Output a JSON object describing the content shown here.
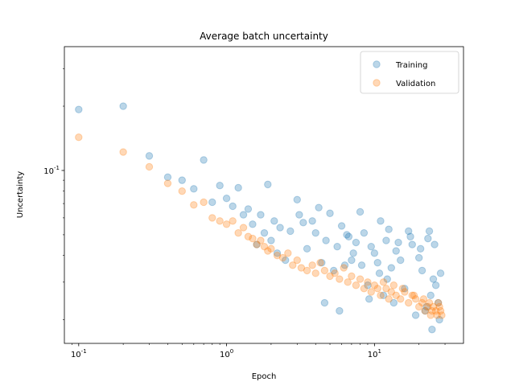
{
  "chart_data": {
    "type": "scatter",
    "title": "Average batch uncertainty",
    "xlabel": "Epoch",
    "ylabel": "Uncertainty",
    "xscale": "log",
    "yscale": "log",
    "xlim": [
      0.08,
      40
    ],
    "ylim": [
      0.0155,
      0.38
    ],
    "x_ticks": [
      {
        "value": 0.1,
        "label": "10^{-1}"
      },
      {
        "value": 1,
        "label": "10^{0}"
      },
      {
        "value": 10,
        "label": "10^{1}"
      }
    ],
    "y_ticks": [
      {
        "value": 0.1,
        "label": "10^{-1}"
      }
    ],
    "legend_position": "top-right",
    "grid": false,
    "series": [
      {
        "name": "Training",
        "color": "#1f77b4",
        "x": [
          0.1,
          0.2,
          0.3,
          0.4,
          0.5,
          0.6,
          0.7,
          0.8,
          0.9,
          1.0,
          1.1,
          1.2,
          1.3,
          1.4,
          1.5,
          1.6,
          1.7,
          1.8,
          1.9,
          2.0,
          2.1,
          2.2,
          2.3,
          2.5,
          2.7,
          3.0,
          3.1,
          3.3,
          3.5,
          3.8,
          4.0,
          4.2,
          4.4,
          4.7,
          5.0,
          5.3,
          5.6,
          6.0,
          6.3,
          6.7,
          7.0,
          7.5,
          8.0,
          8.5,
          9.0,
          9.5,
          10,
          10.5,
          11,
          11.5,
          12,
          12.5,
          13,
          13.5,
          14,
          15,
          16,
          17,
          18,
          19,
          20,
          21,
          22,
          23,
          24,
          25,
          26,
          27,
          28,
          4.6,
          5.8,
          6.5,
          7.2,
          8.2,
          9.2,
          10.8,
          12.2,
          14.5,
          17.5,
          20.5,
          23.5,
          25.5,
          27.5,
          24.5,
          22.5
        ],
        "y": [
          0.193,
          0.2,
          0.117,
          0.093,
          0.09,
          0.082,
          0.112,
          0.071,
          0.085,
          0.074,
          0.068,
          0.083,
          0.062,
          0.066,
          0.056,
          0.045,
          0.062,
          0.051,
          0.086,
          0.047,
          0.058,
          0.041,
          0.054,
          0.038,
          0.052,
          0.073,
          0.062,
          0.057,
          0.043,
          0.058,
          0.051,
          0.067,
          0.037,
          0.047,
          0.063,
          0.034,
          0.044,
          0.055,
          0.036,
          0.049,
          0.038,
          0.046,
          0.064,
          0.051,
          0.029,
          0.044,
          0.041,
          0.037,
          0.058,
          0.026,
          0.047,
          0.053,
          0.035,
          0.024,
          0.042,
          0.038,
          0.028,
          0.052,
          0.045,
          0.021,
          0.039,
          0.034,
          0.022,
          0.048,
          0.026,
          0.031,
          0.029,
          0.024,
          0.033,
          0.024,
          0.022,
          0.05,
          0.041,
          0.036,
          0.025,
          0.033,
          0.031,
          0.046,
          0.049,
          0.043,
          0.052,
          0.045,
          0.02,
          0.018,
          0.023
        ]
      },
      {
        "name": "Validation",
        "color": "#ff7f0e",
        "x": [
          0.1,
          0.2,
          0.3,
          0.4,
          0.5,
          0.6,
          0.7,
          0.8,
          0.9,
          1.0,
          1.1,
          1.2,
          1.3,
          1.4,
          1.5,
          1.6,
          1.7,
          1.8,
          1.9,
          2.0,
          2.2,
          2.4,
          2.6,
          2.8,
          3.0,
          3.2,
          3.5,
          3.8,
          4.0,
          4.3,
          4.6,
          5.0,
          5.4,
          5.8,
          6.2,
          6.6,
          7.0,
          7.5,
          8.0,
          8.5,
          9.0,
          9.5,
          10,
          10.5,
          11,
          11.5,
          12,
          12.5,
          13,
          13.5,
          14,
          15,
          16,
          17,
          18,
          19,
          20,
          21,
          22,
          23,
          24,
          25,
          26,
          27,
          28,
          28.5,
          15.5,
          18.5,
          21.5,
          24.5,
          26.5,
          27.5,
          23.5
        ],
        "y": [
          0.143,
          0.122,
          0.104,
          0.087,
          0.08,
          0.069,
          0.071,
          0.06,
          0.058,
          0.056,
          0.058,
          0.051,
          0.054,
          0.049,
          0.048,
          0.045,
          0.047,
          0.044,
          0.042,
          0.043,
          0.04,
          0.039,
          0.041,
          0.036,
          0.038,
          0.035,
          0.034,
          0.036,
          0.033,
          0.037,
          0.034,
          0.032,
          0.033,
          0.031,
          0.035,
          0.03,
          0.032,
          0.029,
          0.031,
          0.028,
          0.03,
          0.027,
          0.029,
          0.028,
          0.026,
          0.03,
          0.028,
          0.025,
          0.027,
          0.029,
          0.026,
          0.025,
          0.027,
          0.024,
          0.026,
          0.025,
          0.023,
          0.024,
          0.022,
          0.023,
          0.021,
          0.023,
          0.022,
          0.024,
          0.022,
          0.021,
          0.028,
          0.026,
          0.025,
          0.022,
          0.021,
          0.023,
          0.024
        ]
      }
    ]
  }
}
